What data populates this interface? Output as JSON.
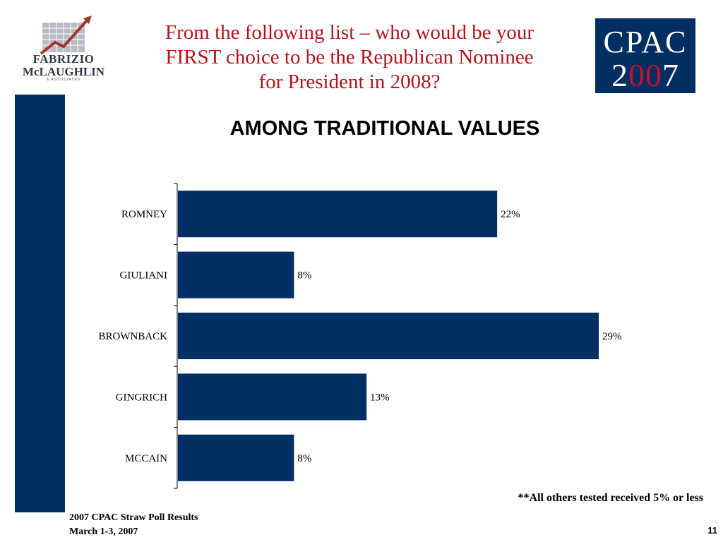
{
  "header": {
    "title_lines": [
      "From the following list – who would be your",
      "FIRST choice to be the Republican Nominee",
      "for President in 2008?"
    ],
    "subtitle": "AMONG TRADITIONAL VALUES"
  },
  "logo_left": {
    "word1": "FABRIZIO",
    "word2": "McLAUGHLIN",
    "word3": "& ASSOCIATES",
    "icon": "rising-arrow-logo"
  },
  "logo_right": {
    "word": "CPAC",
    "year_parts": [
      "2",
      "0",
      "0",
      "7"
    ]
  },
  "chart_data": {
    "type": "bar",
    "orientation": "horizontal",
    "title": "AMONG TRADITIONAL VALUES",
    "categories": [
      "ROMNEY",
      "GIULIANI",
      "BROWNBACK",
      "GINGRICH",
      "MCCAIN"
    ],
    "values": [
      22,
      8,
      29,
      13,
      8
    ],
    "value_labels": [
      "22%",
      "8%",
      "29%",
      "13%",
      "8%"
    ],
    "xlim": [
      0,
      35
    ],
    "bar_color": "#002f63",
    "grid": false,
    "legend": "none"
  },
  "footnote": "**All others tested received 5% or less",
  "footer": {
    "line1": "2007 CPAC Straw Poll Results",
    "line2": "March 1-3, 2007",
    "page_number": "11"
  },
  "colors": {
    "navy": "#002f63",
    "title_red": "#b5121b"
  }
}
